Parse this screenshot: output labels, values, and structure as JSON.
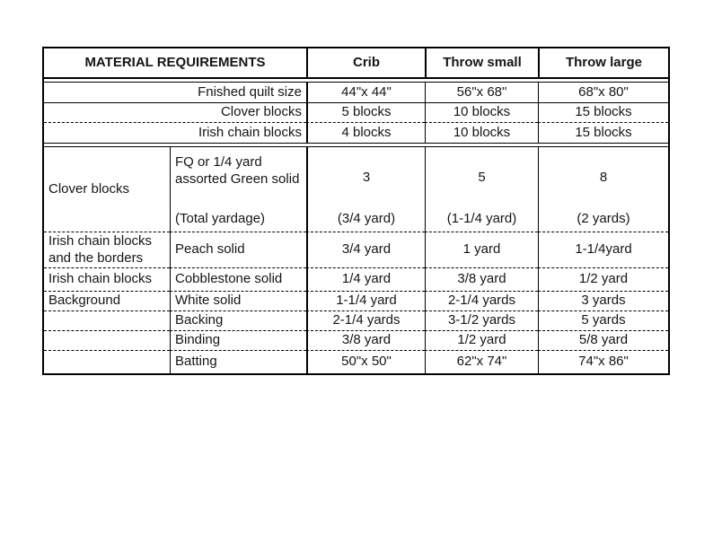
{
  "table": {
    "title": "MATERIAL REQUIREMENTS",
    "size_columns": [
      "Crib",
      "Throw small",
      "Throw large"
    ],
    "summary_rows": [
      {
        "label": "Fnished quilt size",
        "values": [
          "44\"x 44\"",
          "56\"x 68\"",
          "68\"x 80\""
        ]
      },
      {
        "label": "Clover blocks",
        "values": [
          "5 blocks",
          "10 blocks",
          "15 blocks"
        ]
      },
      {
        "label": "Irish chain blocks",
        "values": [
          "4 blocks",
          "10 blocks",
          "15 blocks"
        ]
      }
    ],
    "clover_row": {
      "label": "Clover blocks",
      "material_line1": "FQ or 1/4 yard",
      "material_line2": "assorted Green solid",
      "material_note": "(Total yardage)",
      "counts": [
        "3",
        "5",
        "8"
      ],
      "totals": [
        "(3/4 yard)",
        "(1-1/4 yard)",
        "(2 yards)"
      ]
    },
    "material_rows": [
      {
        "label": "Irish chain blocks and the borders",
        "material": "Peach solid",
        "values": [
          "3/4 yard",
          "1 yard",
          "1-1/4yard"
        ]
      },
      {
        "label": "Irish chain blocks",
        "material": "Cobblestone solid",
        "values": [
          "1/4 yard",
          "3/8 yard",
          "1/2 yard"
        ]
      },
      {
        "label": "Background",
        "material": "White solid",
        "values": [
          "1-1/4 yard",
          "2-1/4 yards",
          "3 yards"
        ]
      },
      {
        "label": "",
        "material": "Backing",
        "values": [
          "2-1/4 yards",
          "3-1/2 yards",
          "5 yards"
        ]
      },
      {
        "label": "",
        "material": "Binding",
        "values": [
          "3/8 yard",
          "1/2 yard",
          "5/8 yard"
        ]
      },
      {
        "label": "",
        "material": "Batting",
        "values": [
          "50\"x 50\"",
          "62\"x 74\"",
          "74\"x 86\""
        ]
      }
    ],
    "colors": {
      "border": "#000000",
      "text": "#151515",
      "background": "#ffffff"
    }
  }
}
